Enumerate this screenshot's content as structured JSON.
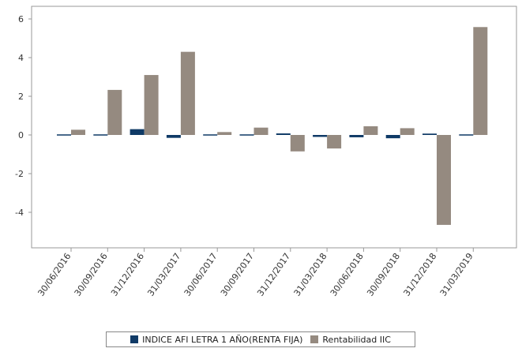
{
  "chart_data": {
    "type": "bar",
    "categories": [
      "30/06/2016",
      "30/09/2016",
      "31/12/2016",
      "31/03/2017",
      "30/06/2017",
      "30/09/2017",
      "31/12/2017",
      "31/03/2018",
      "30/06/2018",
      "30/09/2018",
      "31/12/2018",
      "31/03/2019"
    ],
    "series": [
      {
        "name": "INDICE AFI LETRA 1 AÑO(RENTA FIJA)",
        "color": "#0f3a66",
        "values": [
          -0.04,
          -0.03,
          0.3,
          -0.15,
          -0.05,
          0.0,
          0.08,
          -0.1,
          -0.12,
          -0.17,
          0.07,
          -0.03
        ]
      },
      {
        "name": "Rentabilidad IIC",
        "color": "#958a80",
        "values": [
          0.27,
          2.33,
          3.1,
          4.3,
          0.15,
          0.38,
          -0.85,
          -0.7,
          0.45,
          0.35,
          -4.65,
          5.58
        ]
      }
    ],
    "yticks": [
      6,
      4,
      2,
      0,
      -2,
      -4
    ],
    "ylim": [
      -6,
      6.5
    ],
    "grid": false,
    "legend_position": "bottom"
  }
}
